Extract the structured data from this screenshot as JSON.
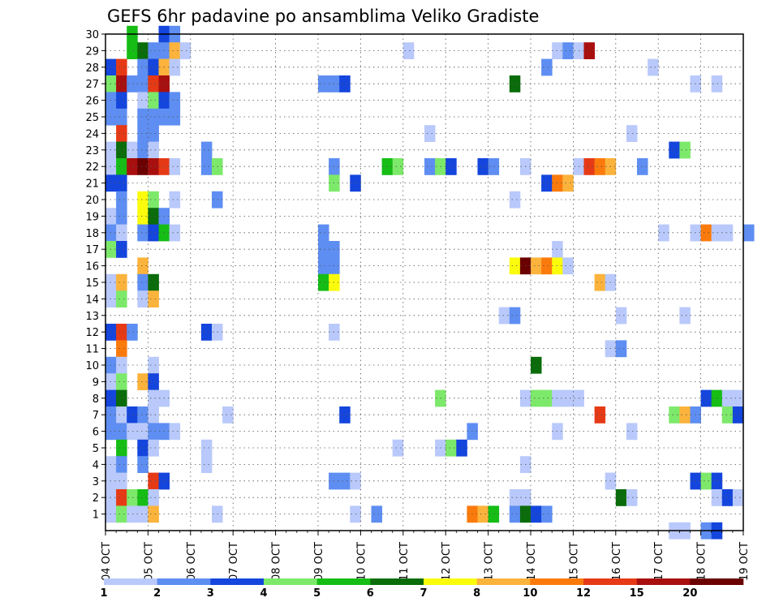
{
  "chart_data": {
    "type": "heatmap",
    "title": "GEFS 6hr padavine po ansamblima Veliko Gradiste",
    "x_axis": {
      "ticks": [
        "04 OCT",
        "05 OCT",
        "06 OCT",
        "07 OCT",
        "08 OCT",
        "09 OCT",
        "10 OCT",
        "11 OCT",
        "12 OCT",
        "13 OCT",
        "14 OCT",
        "15 OCT",
        "16 OCT",
        "17 OCT",
        "18 OCT",
        "19 OCT"
      ],
      "range": [
        "2016-10-04",
        "2016-10-19"
      ],
      "step_hours": 6
    },
    "y_axis": {
      "ticks": [
        "1",
        "2",
        "3",
        "4",
        "5",
        "6",
        "7",
        "8",
        "9",
        "10",
        "11",
        "12",
        "13",
        "14",
        "15",
        "16",
        "17",
        "18",
        "19",
        "20",
        "21",
        "22",
        "23",
        "24",
        "25",
        "26",
        "27",
        "28",
        "29",
        "30"
      ],
      "range": [
        0,
        30
      ]
    },
    "grid": true,
    "colorbar": {
      "labels": [
        "1",
        "2",
        "3",
        "4",
        "5",
        "6",
        "7",
        "8",
        "10",
        "12",
        "15",
        "20"
      ],
      "colors": [
        "#b9c9fb",
        "#5e8ef2",
        "#1445dd",
        "#7de96a",
        "#15bd15",
        "#0a6c0a",
        "#fbfb0c",
        "#fbb33c",
        "#fb7a0c",
        "#e63a16",
        "#a80f0f",
        "#6b0000"
      ]
    },
    "cells": [
      {
        "m": 30,
        "s": [
          [
            2,
            5
          ],
          [
            5,
            3
          ],
          [
            6,
            2
          ]
        ]
      },
      {
        "m": 29,
        "s": [
          [
            2,
            5
          ],
          [
            3,
            6
          ],
          [
            4,
            2
          ],
          [
            5,
            2
          ],
          [
            6,
            8
          ],
          [
            7,
            1
          ],
          [
            28,
            1
          ],
          [
            42,
            1
          ],
          [
            43,
            2
          ],
          [
            44,
            1
          ],
          [
            45,
            11
          ]
        ]
      },
      {
        "m": 28,
        "s": [
          [
            0,
            3
          ],
          [
            1,
            10
          ],
          [
            3,
            2
          ],
          [
            4,
            3
          ],
          [
            5,
            8
          ],
          [
            6,
            1
          ],
          [
            41,
            2
          ],
          [
            51,
            1
          ]
        ]
      },
      {
        "m": 27,
        "s": [
          [
            0,
            4
          ],
          [
            1,
            11
          ],
          [
            2,
            2
          ],
          [
            3,
            2
          ],
          [
            4,
            10
          ],
          [
            5,
            11
          ],
          [
            20,
            2
          ],
          [
            21,
            2
          ],
          [
            22,
            3
          ],
          [
            38,
            6
          ],
          [
            55,
            1
          ],
          [
            57,
            1
          ]
        ]
      },
      {
        "m": 26,
        "s": [
          [
            0,
            2
          ],
          [
            1,
            3
          ],
          [
            3,
            1
          ],
          [
            4,
            4
          ],
          [
            5,
            3
          ],
          [
            6,
            2
          ]
        ]
      },
      {
        "m": 25,
        "s": [
          [
            0,
            2
          ],
          [
            1,
            2
          ],
          [
            3,
            2
          ],
          [
            4,
            2
          ],
          [
            5,
            2
          ],
          [
            6,
            2
          ]
        ]
      },
      {
        "m": 24,
        "s": [
          [
            1,
            10
          ],
          [
            3,
            2
          ],
          [
            4,
            2
          ],
          [
            30,
            1
          ],
          [
            49,
            1
          ]
        ]
      },
      {
        "m": 23,
        "s": [
          [
            0,
            1
          ],
          [
            1,
            6
          ],
          [
            2,
            1
          ],
          [
            3,
            2
          ],
          [
            4,
            1
          ],
          [
            9,
            2
          ],
          [
            53,
            3
          ],
          [
            54,
            4
          ]
        ]
      },
      {
        "m": 22,
        "s": [
          [
            0,
            1
          ],
          [
            1,
            5
          ],
          [
            2,
            11
          ],
          [
            3,
            12
          ],
          [
            4,
            11
          ],
          [
            5,
            10
          ],
          [
            6,
            1
          ],
          [
            9,
            2
          ],
          [
            10,
            4
          ],
          [
            21,
            2
          ],
          [
            26,
            5
          ],
          [
            27,
            4
          ],
          [
            30,
            2
          ],
          [
            31,
            4
          ],
          [
            32,
            3
          ],
          [
            35,
            3
          ],
          [
            36,
            2
          ],
          [
            39,
            1
          ],
          [
            44,
            1
          ],
          [
            45,
            10
          ],
          [
            46,
            9
          ],
          [
            47,
            8
          ],
          [
            50,
            2
          ]
        ]
      },
      {
        "m": 21,
        "s": [
          [
            0,
            3
          ],
          [
            1,
            3
          ],
          [
            21,
            4
          ],
          [
            23,
            3
          ],
          [
            41,
            3
          ],
          [
            42,
            9
          ],
          [
            43,
            8
          ]
        ]
      },
      {
        "m": 20,
        "s": [
          [
            1,
            2
          ],
          [
            3,
            7
          ],
          [
            4,
            4
          ],
          [
            6,
            1
          ],
          [
            10,
            2
          ],
          [
            38,
            1
          ]
        ]
      },
      {
        "m": 19,
        "s": [
          [
            0,
            1
          ],
          [
            1,
            2
          ],
          [
            3,
            7
          ],
          [
            4,
            6
          ],
          [
            5,
            2
          ]
        ]
      },
      {
        "m": 18,
        "s": [
          [
            0,
            2
          ],
          [
            1,
            1
          ],
          [
            3,
            2
          ],
          [
            4,
            3
          ],
          [
            5,
            5
          ],
          [
            6,
            1
          ],
          [
            20,
            2
          ],
          [
            52,
            1
          ],
          [
            55,
            1
          ],
          [
            56,
            9
          ],
          [
            57,
            1
          ],
          [
            58,
            1
          ],
          [
            60,
            2
          ]
        ]
      },
      {
        "m": 17,
        "s": [
          [
            0,
            4
          ],
          [
            1,
            3
          ],
          [
            20,
            2
          ],
          [
            21,
            2
          ],
          [
            42,
            1
          ]
        ]
      },
      {
        "m": 16,
        "s": [
          [
            3,
            8
          ],
          [
            20,
            2
          ],
          [
            21,
            2
          ],
          [
            38,
            7
          ],
          [
            39,
            12
          ],
          [
            40,
            8
          ],
          [
            41,
            9
          ],
          [
            42,
            7
          ],
          [
            43,
            1
          ]
        ]
      },
      {
        "m": 15,
        "s": [
          [
            0,
            1
          ],
          [
            1,
            8
          ],
          [
            3,
            2
          ],
          [
            4,
            6
          ],
          [
            20,
            5
          ],
          [
            21,
            7
          ],
          [
            46,
            8
          ],
          [
            47,
            1
          ]
        ]
      },
      {
        "m": 14,
        "s": [
          [
            0,
            1
          ],
          [
            1,
            4
          ],
          [
            3,
            1
          ],
          [
            4,
            8
          ]
        ]
      },
      {
        "m": 13,
        "s": [
          [
            37,
            1
          ],
          [
            38,
            2
          ],
          [
            48,
            1
          ],
          [
            54,
            1
          ]
        ]
      },
      {
        "m": 12,
        "s": [
          [
            0,
            3
          ],
          [
            1,
            10
          ],
          [
            2,
            2
          ],
          [
            9,
            3
          ],
          [
            10,
            1
          ],
          [
            21,
            1
          ]
        ]
      },
      {
        "m": 11,
        "s": [
          [
            1,
            9
          ],
          [
            47,
            1
          ],
          [
            48,
            2
          ]
        ]
      },
      {
        "m": 10,
        "s": [
          [
            0,
            2
          ],
          [
            1,
            1
          ],
          [
            4,
            1
          ],
          [
            40,
            6
          ]
        ]
      },
      {
        "m": 9,
        "s": [
          [
            0,
            1
          ],
          [
            1,
            4
          ],
          [
            3,
            8
          ],
          [
            4,
            3
          ]
        ]
      },
      {
        "m": 8,
        "s": [
          [
            0,
            3
          ],
          [
            1,
            6
          ],
          [
            4,
            1
          ],
          [
            5,
            1
          ],
          [
            31,
            4
          ],
          [
            39,
            1
          ],
          [
            40,
            4
          ],
          [
            41,
            4
          ],
          [
            42,
            1
          ],
          [
            43,
            1
          ],
          [
            44,
            1
          ],
          [
            56,
            3
          ],
          [
            57,
            5
          ],
          [
            58,
            1
          ],
          [
            59,
            1
          ]
        ]
      },
      {
        "m": 7,
        "s": [
          [
            0,
            2
          ],
          [
            1,
            1
          ],
          [
            2,
            3
          ],
          [
            3,
            2
          ],
          [
            4,
            1
          ],
          [
            11,
            1
          ],
          [
            22,
            3
          ],
          [
            46,
            10
          ],
          [
            53,
            4
          ],
          [
            54,
            8
          ],
          [
            55,
            2
          ],
          [
            58,
            4
          ],
          [
            59,
            3
          ]
        ]
      },
      {
        "m": 6,
        "s": [
          [
            0,
            2
          ],
          [
            1,
            2
          ],
          [
            2,
            1
          ],
          [
            3,
            1
          ],
          [
            4,
            2
          ],
          [
            5,
            2
          ],
          [
            6,
            1
          ],
          [
            34,
            2
          ],
          [
            42,
            1
          ],
          [
            49,
            1
          ]
        ]
      },
      {
        "m": 5,
        "s": [
          [
            1,
            5
          ],
          [
            3,
            3
          ],
          [
            4,
            1
          ],
          [
            9,
            1
          ],
          [
            27,
            1
          ],
          [
            31,
            1
          ],
          [
            32,
            4
          ],
          [
            33,
            3
          ]
        ]
      },
      {
        "m": 4,
        "s": [
          [
            0,
            1
          ],
          [
            1,
            2
          ],
          [
            3,
            2
          ],
          [
            9,
            1
          ],
          [
            39,
            1
          ]
        ]
      },
      {
        "m": 3,
        "s": [
          [
            0,
            1
          ],
          [
            1,
            1
          ],
          [
            4,
            10
          ],
          [
            5,
            3
          ],
          [
            21,
            2
          ],
          [
            22,
            2
          ],
          [
            23,
            1
          ],
          [
            47,
            1
          ],
          [
            55,
            3
          ],
          [
            56,
            4
          ],
          [
            57,
            3
          ]
        ]
      },
      {
        "m": 2,
        "s": [
          [
            0,
            1
          ],
          [
            1,
            10
          ],
          [
            2,
            4
          ],
          [
            3,
            5
          ],
          [
            4,
            1
          ],
          [
            38,
            1
          ],
          [
            39,
            1
          ],
          [
            48,
            6
          ],
          [
            49,
            1
          ],
          [
            57,
            1
          ],
          [
            58,
            3
          ],
          [
            59,
            1
          ]
        ]
      },
      {
        "m": 1,
        "s": [
          [
            0,
            1
          ],
          [
            1,
            4
          ],
          [
            2,
            1
          ],
          [
            3,
            1
          ],
          [
            4,
            8
          ],
          [
            10,
            1
          ],
          [
            23,
            1
          ],
          [
            25,
            2
          ],
          [
            34,
            9
          ],
          [
            35,
            8
          ],
          [
            36,
            5
          ],
          [
            38,
            2
          ],
          [
            39,
            6
          ],
          [
            40,
            3
          ],
          [
            41,
            2
          ]
        ]
      },
      {
        "m": 0,
        "s": [
          [
            53,
            1
          ],
          [
            54,
            1
          ],
          [
            56,
            2
          ],
          [
            57,
            3
          ]
        ]
      }
    ]
  }
}
